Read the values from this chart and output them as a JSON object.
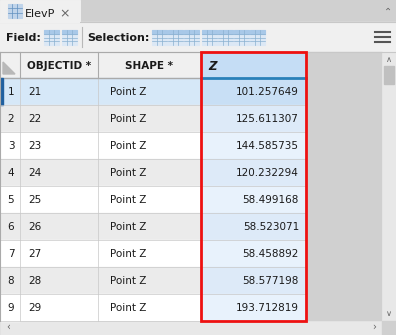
{
  "tab_title": "ElevP",
  "toolbar_label_field": "Field:",
  "toolbar_label_selection": "Selection:",
  "col_headers": [
    "OBJECTID *",
    "SHAPE *",
    "Z"
  ],
  "rows": [
    [
      1,
      21,
      "Point Z",
      "101.257649"
    ],
    [
      2,
      22,
      "Point Z",
      "125.611307"
    ],
    [
      3,
      23,
      "Point Z",
      "144.585735"
    ],
    [
      4,
      24,
      "Point Z",
      "120.232294"
    ],
    [
      5,
      25,
      "Point Z",
      "58.499168"
    ],
    [
      6,
      26,
      "Point Z",
      "58.523071"
    ],
    [
      7,
      27,
      "Point Z",
      "58.458892"
    ],
    [
      8,
      28,
      "Point Z",
      "58.577198"
    ],
    [
      9,
      29,
      "Point Z",
      "193.712819"
    ]
  ],
  "bg_outer": "#d0d0d0",
  "bg_window": "#f0f0f0",
  "bg_toolbar": "#f0f0f0",
  "bg_header": "#f0f0f0",
  "bg_z_col_header": "#c5ddf5",
  "bg_z_col_header_border": "#2980b9",
  "bg_row_white": "#ffffff",
  "bg_row_gray": "#ebebeb",
  "bg_row1_highlight": "#d6e8f8",
  "bg_z_row1": "#c8dff5",
  "bg_z_row_white": "#e8f2fc",
  "bg_z_row_gray": "#ddeaf8",
  "border_color": "#c8c8c8",
  "header_border": "#aaaaaa",
  "text_color": "#1a1a1a",
  "text_gray": "#555555",
  "tab_active_bg": "#f0f0f0",
  "tab_inactive_bg": "#d8d8d8",
  "red_border_color": "#ee1111",
  "scrollbar_bg": "#e8e8e8",
  "scrollbar_thumb": "#c0c0c0",
  "blue_accent": "#3a7bbf",
  "row1_left_accent": "#2060a0"
}
